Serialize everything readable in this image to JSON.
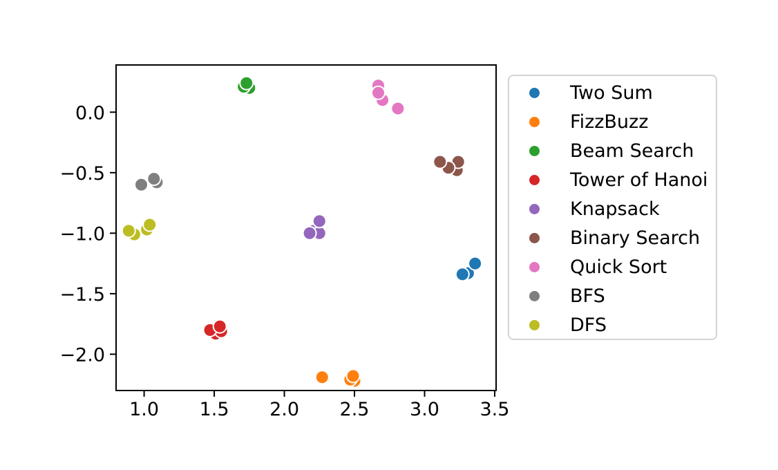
{
  "chart_data": {
    "type": "scatter",
    "title": "",
    "xlabel": "",
    "ylabel": "",
    "grid": false,
    "legend_position": "outside-right-top",
    "xlim": [
      0.8,
      3.51
    ],
    "ylim": [
      -2.3,
      0.39
    ],
    "x_ticks": {
      "values": [
        1.0,
        1.5,
        2.0,
        2.5,
        3.0,
        3.5
      ],
      "labels": [
        "1.0",
        "1.5",
        "2.0",
        "2.5",
        "3.0",
        "3.5"
      ]
    },
    "y_ticks": {
      "values": [
        0.0,
        -0.5,
        -1.0,
        -1.5,
        -2.0
      ],
      "labels": [
        "0.0",
        "−0.5",
        "−1.0",
        "−1.5",
        "−2.0"
      ]
    },
    "series": [
      {
        "name": "Two Sum",
        "color": "#1f77b4",
        "points": [
          [
            3.31,
            -1.33
          ],
          [
            3.27,
            -1.34
          ],
          [
            3.36,
            -1.25
          ]
        ]
      },
      {
        "name": "FizzBuzz",
        "color": "#ff7f0e",
        "points": [
          [
            2.5,
            -2.22
          ],
          [
            2.47,
            -2.21
          ],
          [
            2.49,
            -2.18
          ],
          [
            2.27,
            -2.19
          ]
        ]
      },
      {
        "name": "Beam Search",
        "color": "#2ca02c",
        "points": [
          [
            1.75,
            0.2
          ],
          [
            1.71,
            0.21
          ],
          [
            1.73,
            0.24
          ]
        ]
      },
      {
        "name": "Tower of Hanoi",
        "color": "#d62728",
        "points": [
          [
            1.51,
            -1.83
          ],
          [
            1.55,
            -1.81
          ],
          [
            1.47,
            -1.8
          ],
          [
            1.54,
            -1.77
          ]
        ]
      },
      {
        "name": "Knapsack",
        "color": "#9467bd",
        "points": [
          [
            2.21,
            -0.98
          ],
          [
            2.25,
            -1.0
          ],
          [
            2.18,
            -1.0
          ],
          [
            2.25,
            -0.9
          ]
        ]
      },
      {
        "name": "Binary Search",
        "color": "#8c564b",
        "points": [
          [
            3.23,
            -0.48
          ],
          [
            3.24,
            -0.41
          ],
          [
            3.17,
            -0.46
          ],
          [
            3.11,
            -0.41
          ]
        ]
      },
      {
        "name": "Quick Sort",
        "color": "#e377c2",
        "points": [
          [
            2.67,
            0.22
          ],
          [
            2.7,
            0.1
          ],
          [
            2.67,
            0.16
          ],
          [
            2.81,
            0.03
          ]
        ]
      },
      {
        "name": "BFS",
        "color": "#7f7f7f",
        "points": [
          [
            1.09,
            -0.58
          ],
          [
            1.07,
            -0.55
          ],
          [
            0.98,
            -0.6
          ]
        ]
      },
      {
        "name": "DFS",
        "color": "#bcbd22",
        "points": [
          [
            0.93,
            -1.01
          ],
          [
            0.89,
            -0.98
          ],
          [
            1.02,
            -0.97
          ],
          [
            1.04,
            -0.93
          ]
        ]
      }
    ]
  }
}
